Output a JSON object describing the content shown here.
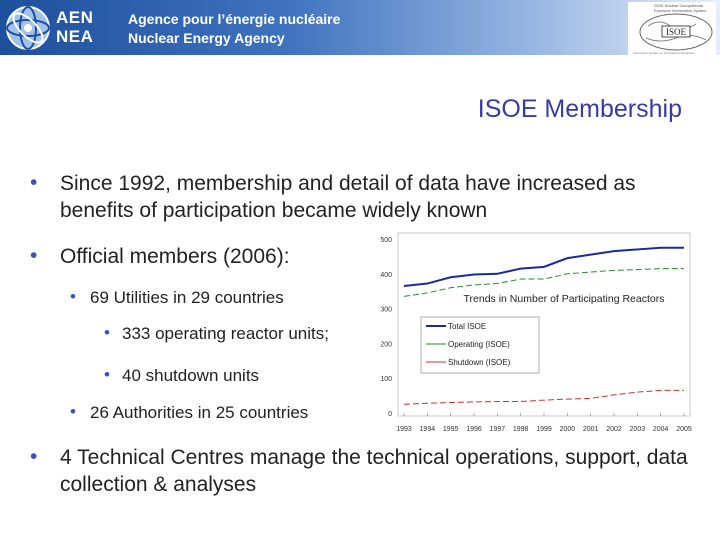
{
  "header": {
    "logo_line1": "AEN",
    "logo_line2": "NEA",
    "agency_fr": "Agence pour l’énergie nucléaire",
    "agency_en": "Nuclear Energy Agency",
    "isoe_logo_text": "ISOE",
    "isoe_small_text": "ISOE Nuclear Occupational Exposure Information System",
    "isoe_footer_text": "Information System on Occupational Exposure",
    "banner_color": "#2b5ea8"
  },
  "slide": {
    "title": "ISOE Membership",
    "bullets": [
      {
        "level": 1,
        "text": "Since 1992, membership and detail of data have increased as benefits of participation became widely known"
      },
      {
        "level": 1,
        "text": "Official members (2006):"
      },
      {
        "level": 2,
        "text": "69 Utilities in 29 countries"
      },
      {
        "level": 3,
        "text": "333 operating reactor units;"
      },
      {
        "level": 3,
        "text": "40 shutdown units"
      },
      {
        "level": 2,
        "text": "26 Authorities in 25 countries"
      },
      {
        "level": 1,
        "text": "4 Technical Centres manage the technical operations, support, data collection & analyses"
      }
    ],
    "accent_color": "#3a3aa6"
  },
  "chart_data": {
    "type": "line",
    "title": "Trends in Number of Participating Reactors",
    "x": [
      "1993",
      "1994",
      "1995",
      "1996",
      "1997",
      "1998",
      "1999",
      "2000",
      "2001",
      "2002",
      "2003",
      "2004",
      "2005"
    ],
    "ylim": [
      0,
      500
    ],
    "yticks": [
      0,
      100,
      200,
      300,
      400,
      500
    ],
    "series": [
      {
        "name": "Total ISOE",
        "color": "#1a2a9c",
        "values": [
          365,
          372,
          390,
          398,
          400,
          415,
          420,
          445,
          455,
          465,
          470,
          475,
          475
        ]
      },
      {
        "name": "Operating (ISOE)",
        "color": "#2a8a2a",
        "values": [
          335,
          345,
          360,
          368,
          372,
          385,
          385,
          400,
          405,
          410,
          412,
          415,
          415
        ]
      },
      {
        "name": "Shutdown (ISOE)",
        "color": "#d03030",
        "values": [
          25,
          28,
          30,
          32,
          33,
          33,
          37,
          40,
          42,
          52,
          60,
          65,
          65
        ]
      }
    ],
    "grid": false,
    "legend": "center-left"
  }
}
